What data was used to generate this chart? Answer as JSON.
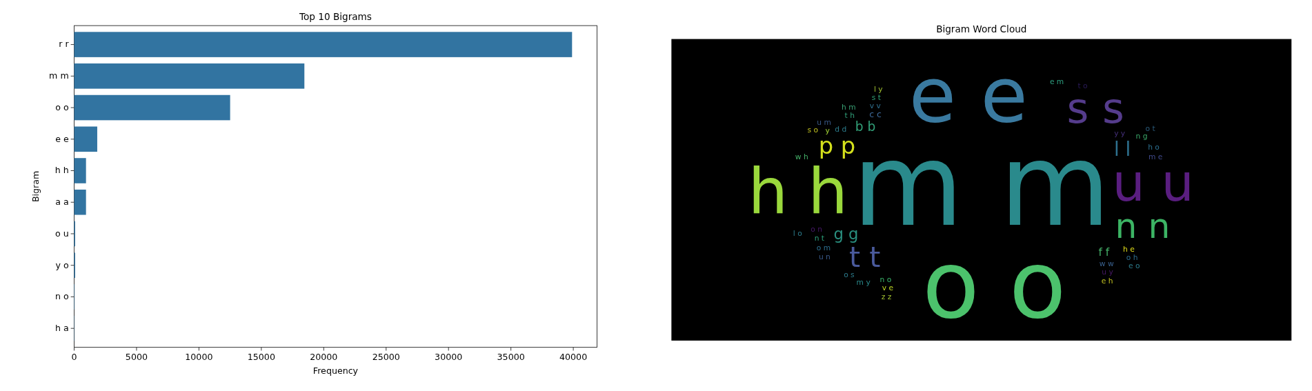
{
  "chart_data": [
    {
      "type": "bar",
      "orientation": "horizontal",
      "title": "Top 10 Bigrams",
      "xlabel": "Frequency",
      "ylabel": "Bigram",
      "categories": [
        "r r",
        "m m",
        "o o",
        "e e",
        "h h",
        "a a",
        "o u",
        "y o",
        "n o",
        "h a"
      ],
      "values": [
        39900,
        18450,
        12500,
        1850,
        950,
        950,
        80,
        80,
        30,
        20
      ],
      "color": "#3274a1",
      "xlim": [
        0,
        41900
      ],
      "xticks": [
        0,
        5000,
        10000,
        15000,
        20000,
        25000,
        30000,
        35000,
        40000
      ],
      "grid": false
    },
    {
      "type": "other",
      "title": "Bigram Word Cloud",
      "categories": [
        "m m",
        "o o",
        "e e",
        "h h",
        "u u",
        "s s",
        "n n",
        "t t",
        "p p",
        "l l",
        "g g",
        "b b",
        "f f",
        "c c",
        "y y",
        "d d",
        "v v",
        "w w",
        "n o",
        "h e",
        "o n",
        "t h",
        "n t",
        "s t",
        "n g",
        "m e",
        "u y",
        "v e",
        "o m",
        "h o",
        "o h",
        "w h",
        "h m",
        "y",
        "e m",
        "m y",
        "o s",
        "u n",
        "u m",
        "l y",
        "e h",
        "s o",
        "t o",
        "o t",
        "e o",
        "z z",
        "l o"
      ],
      "colors": [
        "#2a8a8c",
        "#4cc26c",
        "#3a7aa0",
        "#9ad83c",
        "#5a1e80",
        "#553c8c",
        "#3cb464",
        "#4a5a9c",
        "#d4e01c",
        "#2e7290",
        "#2a9080",
        "#32a078",
        "#44b068",
        "#3e6a9a",
        "#46307c",
        "#2c7c8c",
        "#2e6f8e",
        "#3a6290",
        "#3ab46a",
        "#e4e01a",
        "#48186a",
        "#30a07a",
        "#2ca07c",
        "#32a076",
        "#3aa86a",
        "#404a8c",
        "#471866",
        "#c0d824",
        "#2c7090",
        "#2c7090",
        "#2c6c8e",
        "#44b068",
        "#39a074",
        "#a6d838",
        "#2ea080",
        "#2a8a8c",
        "#2c7c8c",
        "#3a5a8a",
        "#3a5a8a",
        "#a0c030",
        "#c0c020",
        "#c0c020",
        "#2a1a5a",
        "#2a5a7a",
        "#2c7c8c",
        "#a0c030",
        "#2c7c8c"
      ]
    }
  ]
}
